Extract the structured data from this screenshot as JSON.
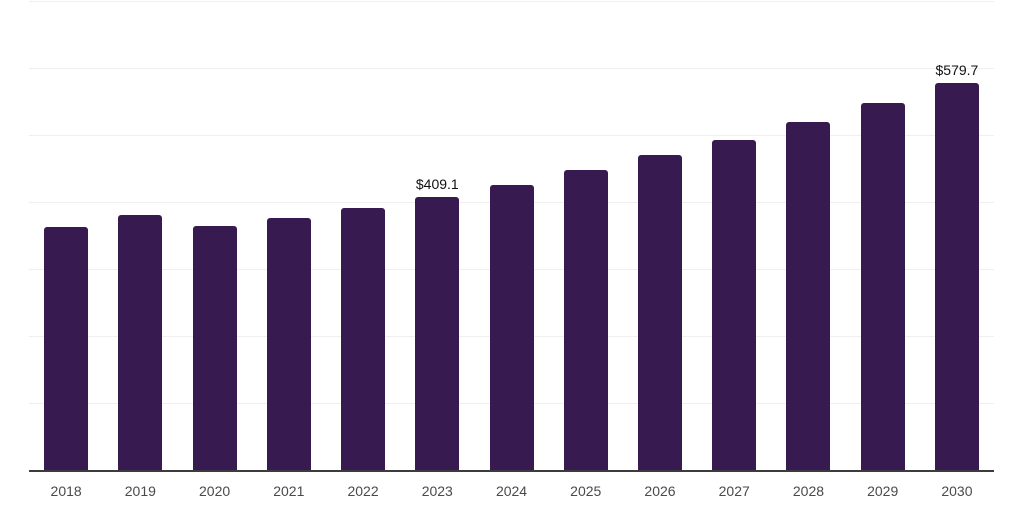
{
  "chart_data": {
    "type": "bar",
    "title": "",
    "xlabel": "",
    "ylabel": "",
    "categories": [
      "2018",
      "2019",
      "2020",
      "2021",
      "2022",
      "2023",
      "2024",
      "2025",
      "2026",
      "2027",
      "2028",
      "2029",
      "2030"
    ],
    "values": [
      364.0,
      382.4,
      366.4,
      378.2,
      392.5,
      409.1,
      427.3,
      449.4,
      471.0,
      494.3,
      521.5,
      549.6,
      579.7
    ],
    "value_labels": [
      null,
      null,
      null,
      null,
      null,
      "$409.1",
      null,
      null,
      null,
      null,
      null,
      null,
      "$579.7"
    ],
    "ylim": [
      0,
      700
    ],
    "grid_interval": 100,
    "grid_visible": true,
    "legend_position": "none",
    "colors": {
      "bar": "#371a4f",
      "gridline": "#efefef",
      "axis_line": "#3c3c3c",
      "tick_label": "#4a4a4a",
      "value_label": "#111111",
      "background": "#ffffff"
    }
  }
}
